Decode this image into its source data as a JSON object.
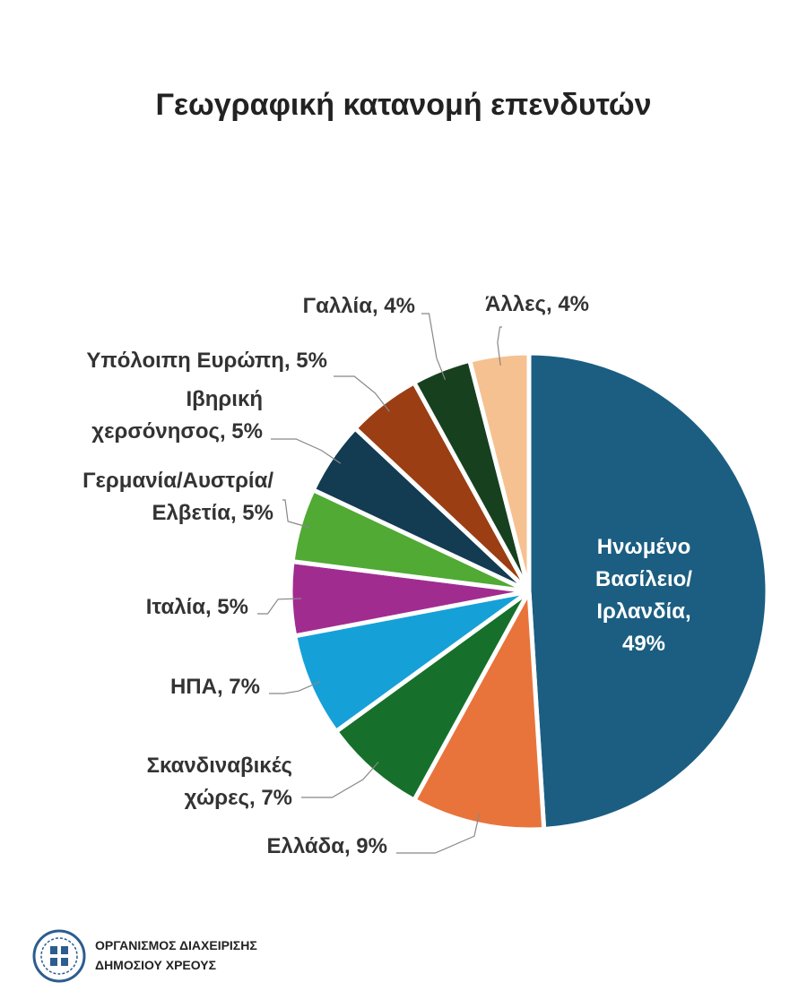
{
  "chart_data": {
    "type": "pie",
    "title": "Γεωγραφική κατανομή επενδυτών",
    "values": [
      49,
      9,
      7,
      7,
      5,
      5,
      5,
      5,
      4,
      4
    ],
    "value_labels": [
      "Ηνωμένο\nΒασίλειο/\nΙρλανδία,\n49%",
      "Ελλάδα, 9%",
      "Σκανδιναβικές\nχώρες, 7%",
      "ΗΠΑ, 7%",
      "Ιταλία, 5%",
      "Γερμανία/Αυστρία/\nΕλβετία, 5%",
      "Ιβηρική\nχερσόνησος, 5%",
      "Υπόλοιπη Ευρώπη, 5%",
      "Γαλλία, 4%",
      "Άλλες, 4%"
    ],
    "colors": [
      "#1b5e82",
      "#e8743b",
      "#16702b",
      "#16a0d8",
      "#a12c90",
      "#50aa34",
      "#133b52",
      "#9b3e13",
      "#17401f",
      "#f6c190"
    ]
  },
  "footer": {
    "org": [
      "ΟΡΓΑΝΙΣΜΟΣ ΔΙΑΧΕΙΡΙΣΗΣ",
      "ΔΗΜΟΣΙΟΥ ΧΡΕΟΥΣ"
    ]
  }
}
